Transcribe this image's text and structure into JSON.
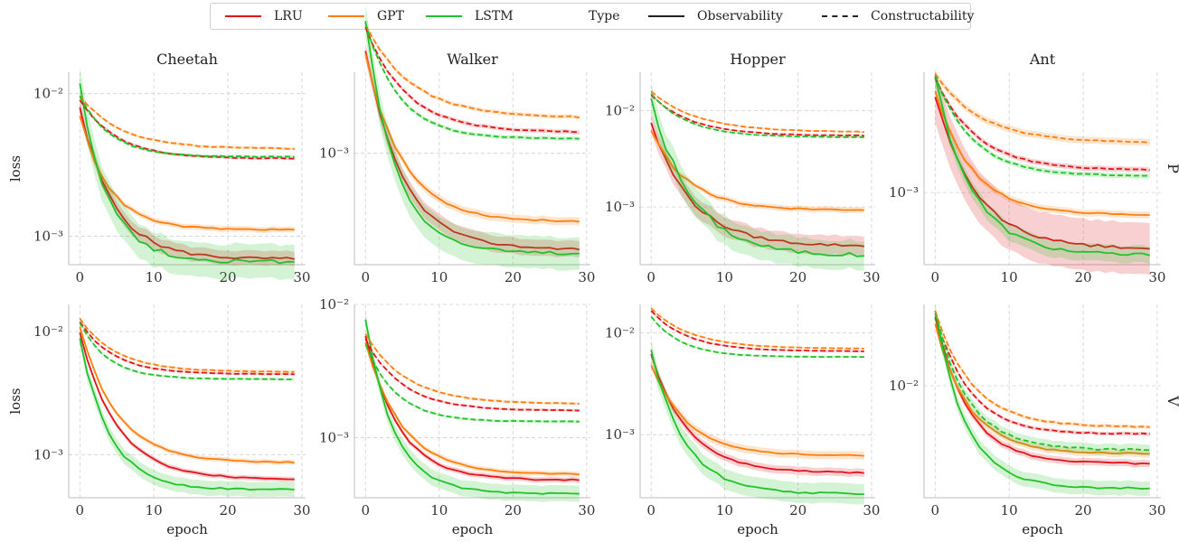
{
  "legend": {
    "items": [
      {
        "label": "LRU",
        "color": "#e0161c",
        "dash": "solid"
      },
      {
        "label": "GPT",
        "color": "#ff7f0e",
        "dash": "solid"
      },
      {
        "label": "LSTM",
        "color": "#22c22a",
        "dash": "solid"
      },
      {
        "label": "Type",
        "color": "",
        "dash": "none"
      },
      {
        "label": "Observability",
        "color": "#222222",
        "dash": "solid"
      },
      {
        "label": "Constructability",
        "color": "#222222",
        "dash": "dashed"
      }
    ]
  },
  "chart_data": [
    {
      "type": "line",
      "title": "Cheetah",
      "row_label": "",
      "ylabel": "loss",
      "xlabel": "",
      "xlim": [
        -1.5,
        30.5
      ],
      "ylim_log": [
        -3.2,
        -1.85
      ],
      "yticks": [
        {
          "value": 0.01,
          "label": "10⁻²"
        },
        {
          "value": 0.001,
          "label": "10⁻³"
        }
      ],
      "xticks": [
        0,
        10,
        20,
        30
      ],
      "grid": true,
      "series": [
        {
          "name": "LRU",
          "kind": "Observability",
          "start": 0.008,
          "end": 0.00069,
          "k": 0.22,
          "noise": 0.04,
          "band": 0.05
        },
        {
          "name": "GPT",
          "kind": "Observability",
          "start": 0.007,
          "end": 0.00111,
          "k": 0.25,
          "noise": 0.02,
          "band": 0.02
        },
        {
          "name": "LSTM",
          "kind": "Observability",
          "start": 0.0118,
          "end": 0.00066,
          "k": 0.26,
          "noise": 0.06,
          "band": 0.12
        },
        {
          "name": "LRU",
          "kind": "Constructability",
          "start": 0.009,
          "end": 0.0035,
          "k": 0.2,
          "noise": 0.01,
          "band": 0.01
        },
        {
          "name": "GPT",
          "kind": "Constructability",
          "start": 0.0097,
          "end": 0.0041,
          "k": 0.18,
          "noise": 0.01,
          "band": 0.01
        },
        {
          "name": "LSTM",
          "kind": "Constructability",
          "start": 0.0096,
          "end": 0.0036,
          "k": 0.24,
          "noise": 0.01,
          "band": 0.01
        }
      ]
    },
    {
      "type": "line",
      "title": "Walker",
      "row_label": "",
      "ylabel": "",
      "xlabel": "",
      "xlim": [
        -1.5,
        30.5
      ],
      "ylim_log": [
        -3.55,
        -2.6
      ],
      "yticks": [
        {
          "value": 0.001,
          "label": "10⁻³"
        }
      ],
      "xticks": [
        0,
        10,
        20,
        30
      ],
      "grid": true,
      "series": [
        {
          "name": "LRU",
          "kind": "Observability",
          "start": 0.0032,
          "end": 0.000335,
          "k": 0.2,
          "noise": 0.02,
          "band": 0.04
        },
        {
          "name": "GPT",
          "kind": "Observability",
          "start": 0.0031,
          "end": 0.00046,
          "k": 0.2,
          "noise": 0.015,
          "band": 0.02
        },
        {
          "name": "LSTM",
          "kind": "Observability",
          "start": 0.0045,
          "end": 0.00032,
          "k": 0.24,
          "noise": 0.03,
          "band": 0.08
        },
        {
          "name": "LRU",
          "kind": "Constructability",
          "start": 0.0042,
          "end": 0.00127,
          "k": 0.18,
          "noise": 0.008,
          "band": 0.01
        },
        {
          "name": "GPT",
          "kind": "Constructability",
          "start": 0.0043,
          "end": 0.0015,
          "k": 0.16,
          "noise": 0.008,
          "band": 0.01
        },
        {
          "name": "LSTM",
          "kind": "Constructability",
          "start": 0.0044,
          "end": 0.00118,
          "k": 0.22,
          "noise": 0.008,
          "band": 0.01
        }
      ]
    },
    {
      "type": "line",
      "title": "Hopper",
      "row_label": "",
      "ylabel": "",
      "xlabel": "",
      "xlim": [
        -1.5,
        30.5
      ],
      "ylim_log": [
        -3.6,
        -1.6
      ],
      "yticks": [
        {
          "value": 0.01,
          "label": "10⁻²"
        },
        {
          "value": 0.001,
          "label": "10⁻³"
        }
      ],
      "xticks": [
        0,
        10,
        20,
        30
      ],
      "grid": true,
      "series": [
        {
          "name": "LRU",
          "kind": "Observability",
          "start": 0.0075,
          "end": 0.00039,
          "k": 0.18,
          "noise": 0.05,
          "band": 0.1
        },
        {
          "name": "GPT",
          "kind": "Observability",
          "start": 0.0062,
          "end": 0.00093,
          "k": 0.2,
          "noise": 0.03,
          "band": 0.03
        },
        {
          "name": "LSTM",
          "kind": "Observability",
          "start": 0.0135,
          "end": 0.00031,
          "k": 0.18,
          "noise": 0.08,
          "band": 0.15
        },
        {
          "name": "LRU",
          "kind": "Constructability",
          "start": 0.0145,
          "end": 0.0055,
          "k": 0.18,
          "noise": 0.008,
          "band": 0.01
        },
        {
          "name": "GPT",
          "kind": "Constructability",
          "start": 0.016,
          "end": 0.006,
          "k": 0.16,
          "noise": 0.008,
          "band": 0.01
        },
        {
          "name": "LSTM",
          "kind": "Constructability",
          "start": 0.015,
          "end": 0.0053,
          "k": 0.2,
          "noise": 0.008,
          "band": 0.01
        }
      ]
    },
    {
      "type": "line",
      "title": "Ant",
      "row_label": "P",
      "ylabel": "",
      "xlabel": "",
      "xlim": [
        -1.5,
        30.5
      ],
      "ylim_log": [
        -3.42,
        -2.3
      ],
      "yticks": [
        {
          "value": 0.001,
          "label": "10⁻³"
        }
      ],
      "xticks": [
        0,
        10,
        20,
        30
      ],
      "grid": true,
      "series": [
        {
          "name": "LRU",
          "kind": "Observability",
          "start": 0.0036,
          "end": 0.00047,
          "k": 0.18,
          "noise": 0.03,
          "band": 0.15
        },
        {
          "name": "GPT",
          "kind": "Observability",
          "start": 0.0039,
          "end": 0.00074,
          "k": 0.2,
          "noise": 0.015,
          "band": 0.02
        },
        {
          "name": "LSTM",
          "kind": "Observability",
          "start": 0.0047,
          "end": 0.00043,
          "k": 0.2,
          "noise": 0.04,
          "band": 0.05
        },
        {
          "name": "LRU",
          "kind": "Constructability",
          "start": 0.0047,
          "end": 0.00135,
          "k": 0.18,
          "noise": 0.01,
          "band": 0.015
        },
        {
          "name": "GPT",
          "kind": "Constructability",
          "start": 0.0049,
          "end": 0.00195,
          "k": 0.16,
          "noise": 0.01,
          "band": 0.02
        },
        {
          "name": "LSTM",
          "kind": "Constructability",
          "start": 0.0048,
          "end": 0.00125,
          "k": 0.2,
          "noise": 0.01,
          "band": 0.015
        }
      ]
    },
    {
      "type": "line",
      "title": "",
      "row_label": "",
      "ylabel": "loss",
      "xlabel": "epoch",
      "xlim": [
        -1.5,
        30.5
      ],
      "ylim_log": [
        -3.35,
        -1.78
      ],
      "yticks": [
        {
          "value": 0.01,
          "label": "10⁻²"
        },
        {
          "value": 0.001,
          "label": "10⁻³"
        }
      ],
      "xticks": [
        0,
        10,
        20,
        30
      ],
      "grid": true,
      "series": [
        {
          "name": "LRU",
          "kind": "Observability",
          "start": 0.0098,
          "end": 0.00063,
          "k": 0.2,
          "noise": 0.02,
          "band": 0.02
        },
        {
          "name": "GPT",
          "kind": "Observability",
          "start": 0.0109,
          "end": 0.00086,
          "k": 0.2,
          "noise": 0.015,
          "band": 0.02
        },
        {
          "name": "LSTM",
          "kind": "Observability",
          "start": 0.0088,
          "end": 0.00052,
          "k": 0.25,
          "noise": 0.03,
          "band": 0.06
        },
        {
          "name": "LRU",
          "kind": "Constructability",
          "start": 0.012,
          "end": 0.0045,
          "k": 0.22,
          "noise": 0.008,
          "band": 0.01
        },
        {
          "name": "GPT",
          "kind": "Constructability",
          "start": 0.0128,
          "end": 0.0047,
          "k": 0.2,
          "noise": 0.008,
          "band": 0.01
        },
        {
          "name": "LSTM",
          "kind": "Constructability",
          "start": 0.0118,
          "end": 0.0041,
          "k": 0.26,
          "noise": 0.008,
          "band": 0.01
        }
      ]
    },
    {
      "type": "line",
      "title": "",
      "row_label": "",
      "ylabel": "",
      "xlabel": "epoch",
      "xlim": [
        -1.5,
        30.5
      ],
      "ylim_log": [
        -3.45,
        -2.0
      ],
      "yticks": [
        {
          "value": 0.01,
          "label": "10⁻²"
        },
        {
          "value": 0.001,
          "label": "10⁻³"
        }
      ],
      "xticks": [
        0,
        10,
        20,
        30
      ],
      "grid": true,
      "series": [
        {
          "name": "LRU",
          "kind": "Observability",
          "start": 0.0058,
          "end": 0.00048,
          "k": 0.22,
          "noise": 0.02,
          "band": 0.02
        },
        {
          "name": "GPT",
          "kind": "Observability",
          "start": 0.0052,
          "end": 0.00053,
          "k": 0.2,
          "noise": 0.015,
          "band": 0.02
        },
        {
          "name": "LSTM",
          "kind": "Observability",
          "start": 0.0077,
          "end": 0.00038,
          "k": 0.26,
          "noise": 0.03,
          "band": 0.06
        },
        {
          "name": "LRU",
          "kind": "Constructability",
          "start": 0.0055,
          "end": 0.0016,
          "k": 0.2,
          "noise": 0.008,
          "band": 0.01
        },
        {
          "name": "GPT",
          "kind": "Constructability",
          "start": 0.006,
          "end": 0.0018,
          "k": 0.18,
          "noise": 0.008,
          "band": 0.01
        },
        {
          "name": "LSTM",
          "kind": "Constructability",
          "start": 0.005,
          "end": 0.00132,
          "k": 0.24,
          "noise": 0.008,
          "band": 0.01
        }
      ]
    },
    {
      "type": "line",
      "title": "",
      "row_label": "",
      "ylabel": "",
      "xlabel": "epoch",
      "xlim": [
        -1.5,
        30.5
      ],
      "ylim_log": [
        -3.62,
        -1.72
      ],
      "yticks": [
        {
          "value": 0.01,
          "label": "10⁻²"
        },
        {
          "value": 0.001,
          "label": "10⁻³"
        }
      ],
      "xticks": [
        0,
        10,
        20,
        30
      ],
      "grid": true,
      "series": [
        {
          "name": "LRU",
          "kind": "Observability",
          "start": 0.0062,
          "end": 0.00042,
          "k": 0.2,
          "noise": 0.025,
          "band": 0.04
        },
        {
          "name": "GPT",
          "kind": "Observability",
          "start": 0.0048,
          "end": 0.00062,
          "k": 0.2,
          "noise": 0.02,
          "band": 0.04
        },
        {
          "name": "LSTM",
          "kind": "Observability",
          "start": 0.0068,
          "end": 0.00026,
          "k": 0.22,
          "noise": 0.04,
          "band": 0.1
        },
        {
          "name": "LRU",
          "kind": "Constructability",
          "start": 0.0165,
          "end": 0.0066,
          "k": 0.2,
          "noise": 0.006,
          "band": 0.01
        },
        {
          "name": "GPT",
          "kind": "Constructability",
          "start": 0.0175,
          "end": 0.007,
          "k": 0.18,
          "noise": 0.006,
          "band": 0.01
        },
        {
          "name": "LSTM",
          "kind": "Constructability",
          "start": 0.0145,
          "end": 0.0058,
          "k": 0.24,
          "noise": 0.006,
          "band": 0.01
        }
      ]
    },
    {
      "type": "line",
      "title": "",
      "row_label": "V",
      "ylabel": "",
      "xlabel": "epoch",
      "xlim": [
        -1.5,
        30.5
      ],
      "ylim_log": [
        -2.62,
        -1.55
      ],
      "yticks": [
        {
          "value": 0.01,
          "label": "10⁻²"
        }
      ],
      "xticks": [
        0,
        10,
        20,
        30
      ],
      "grid": true,
      "series": [
        {
          "name": "LRU",
          "kind": "Observability",
          "start": 0.024,
          "end": 0.0037,
          "k": 0.22,
          "noise": 0.015,
          "band": 0.02
        },
        {
          "name": "GPT",
          "kind": "Observability",
          "start": 0.022,
          "end": 0.0042,
          "k": 0.22,
          "noise": 0.015,
          "band": 0.02
        },
        {
          "name": "LSTM",
          "kind": "Observability",
          "start": 0.026,
          "end": 0.0027,
          "k": 0.24,
          "noise": 0.02,
          "band": 0.04
        },
        {
          "name": "LRU",
          "kind": "Constructability",
          "start": 0.025,
          "end": 0.0054,
          "k": 0.22,
          "noise": 0.01,
          "band": 0.01
        },
        {
          "name": "GPT",
          "kind": "Constructability",
          "start": 0.026,
          "end": 0.0059,
          "k": 0.2,
          "noise": 0.01,
          "band": 0.01
        },
        {
          "name": "LSTM",
          "kind": "Constructability",
          "start": 0.025,
          "end": 0.0044,
          "k": 0.22,
          "noise": 0.02,
          "band": 0.03
        }
      ]
    }
  ]
}
